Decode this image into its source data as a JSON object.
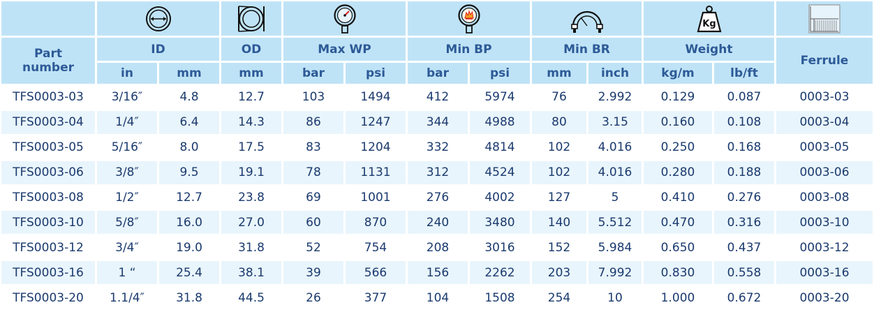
{
  "header": {
    "part_number": "Part\nnumber",
    "id": "ID",
    "od": "OD",
    "max_wp": "Max WP",
    "min_bp": "Min BP",
    "min_br": "Min BR",
    "weight": "Weight",
    "ferrule": "Ferrule",
    "units": {
      "id_in": "in",
      "id_mm": "mm",
      "od_mm": "mm",
      "wp_bar": "bar",
      "wp_psi": "psi",
      "bp_bar": "bar",
      "bp_psi": "psi",
      "br_mm": "mm",
      "br_inch": "inch",
      "w_kgm": "kg/m",
      "w_lbft": "lb/ft"
    },
    "icons": [
      "inner-diameter-icon",
      "outer-diameter-icon",
      "pressure-gauge-icon",
      "burst-gauge-icon",
      "bend-radius-icon",
      "weight-kg-icon",
      "ferrule-icon"
    ],
    "weight_icon_text": "Kg"
  },
  "rows": [
    [
      "TFS0003-03",
      "3/16″",
      "4.8",
      "12.7",
      "103",
      "1494",
      "412",
      "5974",
      "76",
      "2.992",
      "0.129",
      "0.087",
      "0003-03"
    ],
    [
      "TFS0003-04",
      "1/4″",
      "6.4",
      "14.3",
      "86",
      "1247",
      "344",
      "4988",
      "80",
      "3.15",
      "0.160",
      "0.108",
      "0003-04"
    ],
    [
      "TFS0003-05",
      "5/16″",
      "8.0",
      "17.5",
      "83",
      "1204",
      "332",
      "4814",
      "102",
      "4.016",
      "0.250",
      "0.168",
      "0003-05"
    ],
    [
      "TFS0003-06",
      "3/8″",
      "9.5",
      "19.1",
      "78",
      "1131",
      "312",
      "4524",
      "102",
      "4.016",
      "0.280",
      "0.188",
      "0003-06"
    ],
    [
      "TFS0003-08",
      "1/2″",
      "12.7",
      "23.8",
      "69",
      "1001",
      "276",
      "4002",
      "127",
      "5",
      "0.410",
      "0.276",
      "0003-08"
    ],
    [
      "TFS0003-10",
      "5/8″",
      "16.0",
      "27.0",
      "60",
      "870",
      "240",
      "3480",
      "140",
      "5.512",
      "0.470",
      "0.316",
      "0003-10"
    ],
    [
      "TFS0003-12",
      "3/4″",
      "19.0",
      "31.8",
      "52",
      "754",
      "208",
      "3016",
      "152",
      "5.984",
      "0.650",
      "0.437",
      "0003-12"
    ],
    [
      "TFS0003-16",
      "1 “",
      "25.4",
      "38.1",
      "39",
      "566",
      "156",
      "2262",
      "203",
      "7.992",
      "0.830",
      "0.558",
      "0003-16"
    ],
    [
      "TFS0003-20",
      "1.1/4″",
      "31.8",
      "44.5",
      "26",
      "377",
      "104",
      "1508",
      "254",
      "10",
      "1.000",
      "0.672",
      "0003-20"
    ]
  ],
  "colors": {
    "header_bg": "#bfe3f6",
    "header_text": "#2d5a97",
    "body_text": "#1a3a6e",
    "row_alt": "#e9f5fc"
  }
}
